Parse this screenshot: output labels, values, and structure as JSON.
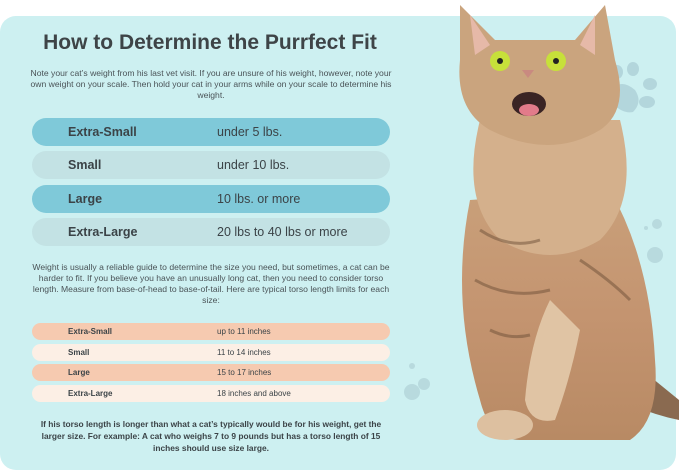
{
  "title": "How to Determine the Purrfect Fit",
  "intro": "Note your cat’s weight from his last vet visit. If you are unsure of his weight, however, note your own weight on your scale. Then hold your cat in your arms while on your scale to determine his weight.",
  "weight_sizes": [
    {
      "size": "Extra-Small",
      "range": "under 5 lbs."
    },
    {
      "size": "Small",
      "range": "under 10 lbs."
    },
    {
      "size": "Large",
      "range": "10 lbs. or more"
    },
    {
      "size": "Extra-Large",
      "range": "20 lbs to 40 lbs or more"
    }
  ],
  "torso_intro": "Weight is usually a reliable guide to determine the size you need, but sometimes, a cat can be harder to fit. If you believe you have an unusually long cat, then you need to consider torso length. Measure from base-of-head to base-of-tail. Here are typical torso length limits for each size:",
  "torso_sizes": [
    {
      "size": "Extra-Small",
      "range": "up to 11 inches"
    },
    {
      "size": "Small",
      "range": "11 to 14 inches"
    },
    {
      "size": "Large",
      "range": "15 to 17 inches"
    },
    {
      "size": "Extra-Large",
      "range": "18 inches and above"
    }
  ],
  "footer": "If his torso length is longer than what a cat’s typically would be for his weight, get the larger size. For example: A cat who weighs 7 to 9 pounds but has a torso length of 15 inches should use size large.",
  "colors": {
    "panel": "#cdf0f1",
    "row_dark": "#7fc9d9",
    "row_light": "#c3e2e4",
    "row_peach": "#f6cab0",
    "row_cream": "#fcefe5"
  },
  "images": {
    "cat_photo": "tabby-cat-raising-paw",
    "decor": "paw-print-icon"
  }
}
